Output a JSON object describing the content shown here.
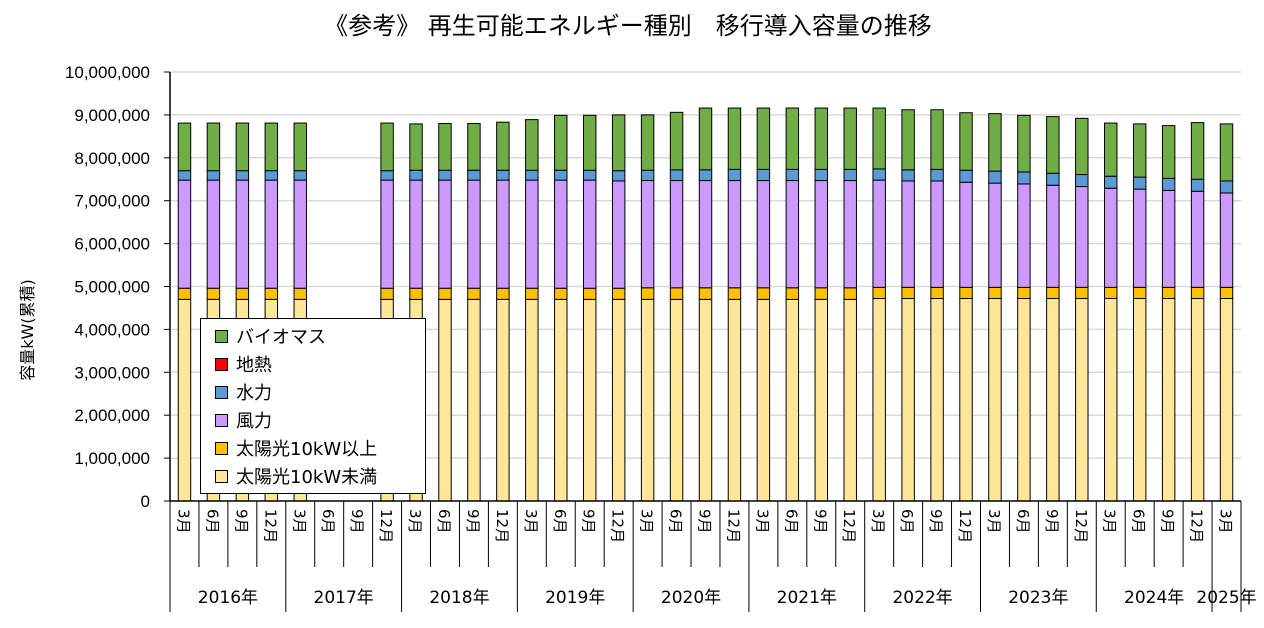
{
  "chart_data": {
    "type": "bar",
    "stacked": true,
    "title": "《参考》 再生可能エネルギー種別　移行導入容量の推移",
    "ylabel": "容量kW(累積)",
    "ylim": [
      0,
      10000000
    ],
    "yticks": [
      "0",
      "1,000,000",
      "2,000,000",
      "3,000,000",
      "4,000,000",
      "5,000,000",
      "6,000,000",
      "7,000,000",
      "8,000,000",
      "9,000,000",
      "10,000,000"
    ],
    "grid": true,
    "legend_position": "bottom-left (inside plot)",
    "categories": [
      "2016年 3月",
      "2016年 6月",
      "2016年 9月",
      "2016年 12月",
      "2017年 3月",
      "2017年 6月",
      "2017年 9月",
      "2017年 12月",
      "2018年 3月",
      "2018年 6月",
      "2018年 9月",
      "2018年 12月",
      "2019年 3月",
      "2019年 6月",
      "2019年 9月",
      "2019年 12月",
      "2020年 3月",
      "2020年 6月",
      "2020年 9月",
      "2020年 12月",
      "2021年 3月",
      "2021年 6月",
      "2021年 9月",
      "2021年 12月",
      "2022年 3月",
      "2022年 6月",
      "2022年 9月",
      "2022年 12月",
      "2023年 3月",
      "2023年 6月",
      "2023年 9月",
      "2023年 12月",
      "2024年 3月",
      "2024年 6月",
      "2024年 9月",
      "2024年 12月",
      "2025年 3月"
    ],
    "months": [
      "3月",
      "6月",
      "9月",
      "12月",
      "3月",
      "6月",
      "9月",
      "12月",
      "3月",
      "6月",
      "9月",
      "12月",
      "3月",
      "6月",
      "9月",
      "12月",
      "3月",
      "6月",
      "9月",
      "12月",
      "3月",
      "6月",
      "9月",
      "12月",
      "3月",
      "6月",
      "9月",
      "12月",
      "3月",
      "6月",
      "9月",
      "12月",
      "3月",
      "6月",
      "9月",
      "12月",
      "3月"
    ],
    "years": [
      {
        "label": "2016年",
        "count": 4
      },
      {
        "label": "2017年",
        "count": 4
      },
      {
        "label": "2018年",
        "count": 4
      },
      {
        "label": "2019年",
        "count": 4
      },
      {
        "label": "2020年",
        "count": 4
      },
      {
        "label": "2021年",
        "count": 4
      },
      {
        "label": "2022年",
        "count": 4
      },
      {
        "label": "2023年",
        "count": 4
      },
      {
        "label": "2024年",
        "count": 4
      },
      {
        "label": "2025年",
        "count": 1
      }
    ],
    "series": [
      {
        "name": "太陽光10kW未満",
        "color": "#FFE699",
        "values": [
          4700000,
          4700000,
          4700000,
          4700000,
          4700000,
          null,
          null,
          4700000,
          4700000,
          4700000,
          4700000,
          4700000,
          4700000,
          4700000,
          4700000,
          4700000,
          4700000,
          4700000,
          4700000,
          4700000,
          4700000,
          4700000,
          4700000,
          4700000,
          4720000,
          4720000,
          4720000,
          4720000,
          4720000,
          4720000,
          4720000,
          4720000,
          4720000,
          4720000,
          4720000,
          4720000,
          4720000
        ]
      },
      {
        "name": "太陽光10kW以上",
        "color": "#FFC000",
        "values": [
          260000,
          260000,
          260000,
          260000,
          260000,
          null,
          null,
          260000,
          260000,
          260000,
          260000,
          260000,
          260000,
          260000,
          260000,
          260000,
          270000,
          270000,
          270000,
          270000,
          270000,
          270000,
          270000,
          270000,
          260000,
          260000,
          260000,
          260000,
          260000,
          260000,
          260000,
          260000,
          260000,
          260000,
          260000,
          260000,
          260000
        ]
      },
      {
        "name": "風力",
        "color": "#CC99FF",
        "values": [
          2520000,
          2520000,
          2520000,
          2520000,
          2520000,
          null,
          null,
          2520000,
          2520000,
          2520000,
          2520000,
          2520000,
          2520000,
          2520000,
          2520000,
          2500000,
          2500000,
          2500000,
          2500000,
          2500000,
          2500000,
          2500000,
          2500000,
          2500000,
          2500000,
          2480000,
          2480000,
          2450000,
          2430000,
          2410000,
          2380000,
          2350000,
          2310000,
          2290000,
          2260000,
          2240000,
          2200000
        ]
      },
      {
        "name": "水力",
        "color": "#5B9BD5",
        "values": [
          220000,
          220000,
          220000,
          220000,
          220000,
          null,
          null,
          220000,
          230000,
          230000,
          230000,
          230000,
          230000,
          230000,
          230000,
          240000,
          240000,
          250000,
          250000,
          260000,
          260000,
          260000,
          260000,
          260000,
          260000,
          260000,
          270000,
          280000,
          280000,
          280000,
          280000,
          280000,
          280000,
          280000,
          280000,
          280000,
          280000
        ]
      },
      {
        "name": "地熱",
        "color": "#FF0000",
        "values": [
          0,
          0,
          0,
          0,
          0,
          null,
          null,
          0,
          0,
          0,
          0,
          0,
          0,
          0,
          0,
          0,
          0,
          0,
          0,
          0,
          0,
          0,
          0,
          0,
          0,
          0,
          0,
          0,
          0,
          0,
          0,
          0,
          0,
          0,
          0,
          0,
          0
        ]
      },
      {
        "name": "バイオマス",
        "color": "#70AD47",
        "values": [
          1110000,
          1110000,
          1110000,
          1110000,
          1110000,
          null,
          null,
          1110000,
          1080000,
          1090000,
          1090000,
          1120000,
          1180000,
          1280000,
          1280000,
          1300000,
          1290000,
          1340000,
          1440000,
          1430000,
          1430000,
          1430000,
          1430000,
          1430000,
          1420000,
          1400000,
          1390000,
          1340000,
          1340000,
          1320000,
          1320000,
          1310000,
          1240000,
          1240000,
          1230000,
          1320000,
          1330000
        ]
      }
    ]
  }
}
